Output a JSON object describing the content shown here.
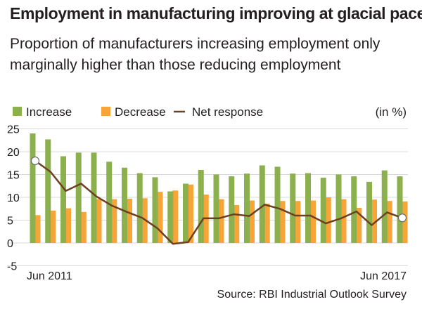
{
  "title": "Employment in manufacturing improving at glacial pace",
  "subtitle": "Proportion of manufacturers increasing employment only marginally higher than those reducing employment",
  "source": "Source: RBI Industrial Outlook Survey",
  "chart_data": {
    "type": "bar",
    "unit_label": "(in %)",
    "ylim": [
      -5,
      25
    ],
    "yticks": [
      25,
      20,
      15,
      10,
      5,
      0,
      -5
    ],
    "x_start_label": "Jun 2011",
    "x_end_label": "Jun 2017",
    "grid": true,
    "legend_position": "top-left",
    "colors": {
      "increase": "#8cb04e",
      "decrease": "#f7a538",
      "net": "#6e4022"
    },
    "series": [
      {
        "name": "Increase",
        "kind": "bar",
        "values": [
          24.0,
          22.7,
          19.0,
          19.8,
          19.8,
          17.8,
          16.5,
          15.3,
          14.4,
          11.3,
          13.0,
          16.0,
          15.0,
          14.6,
          15.2,
          17.0,
          16.7,
          15.2,
          15.3,
          14.3,
          15.0,
          14.6,
          13.4,
          15.9,
          14.6
        ]
      },
      {
        "name": "Decrease",
        "kind": "bar",
        "values": [
          6.1,
          7.1,
          7.6,
          6.8,
          9.6,
          9.6,
          9.7,
          9.8,
          11.2,
          11.5,
          12.8,
          10.6,
          9.6,
          8.3,
          9.3,
          8.6,
          9.2,
          9.2,
          9.3,
          10.0,
          9.6,
          7.7,
          9.5,
          9.2,
          9.1
        ]
      },
      {
        "name": "Net response",
        "kind": "line",
        "values": [
          18.0,
          15.6,
          11.4,
          13.0,
          10.2,
          8.2,
          6.8,
          5.5,
          3.2,
          -0.2,
          0.2,
          5.4,
          5.4,
          6.3,
          5.9,
          8.4,
          7.5,
          6.0,
          6.0,
          4.3,
          5.4,
          6.9,
          3.9,
          6.7,
          5.5
        ]
      }
    ]
  }
}
